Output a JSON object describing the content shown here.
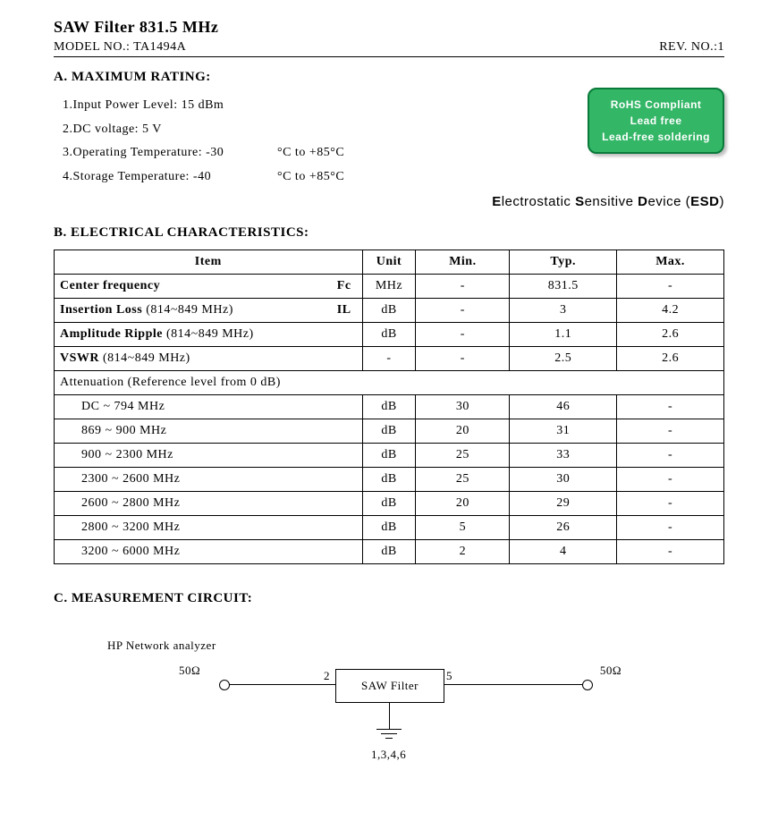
{
  "header": {
    "title": "SAW Filter 831.5 MHz",
    "model": "MODEL NO.: TA1494A",
    "rev": "REV. NO.:1"
  },
  "sectionA": {
    "title": "A. MAXIMUM RATING:",
    "items": [
      {
        "label": "1.Input Power Level: 15 dBm",
        "extra": ""
      },
      {
        "label": "2.DC voltage: 5 V",
        "extra": ""
      },
      {
        "label": "3.Operating Temperature: -30",
        "extra": "°C to +85°C"
      },
      {
        "label": "4.Storage Temperature: -40",
        "extra": "°C to +85°C"
      }
    ]
  },
  "badge": {
    "line1": "RoHS Compliant",
    "line2": "Lead free",
    "line3": "Lead-free soldering",
    "bg": "#33b666",
    "border": "#0a7a3a"
  },
  "esd": "Electrostatic Sensitive Device (ESD)",
  "sectionB": {
    "title": "B. ELECTRICAL CHARACTERISTICS:",
    "headers": {
      "item": "Item",
      "unit": "Unit",
      "min": "Min.",
      "typ": "Typ.",
      "max": "Max."
    },
    "rows": [
      {
        "item": "Center frequency",
        "sym": "Fc",
        "unit": "MHz",
        "min": "-",
        "typ": "831.5",
        "max": "-"
      },
      {
        "item": "Insertion Loss     (814~849 MHz)",
        "sym": "IL",
        "unit": "dB",
        "min": "-",
        "typ": "3",
        "max": "4.2"
      },
      {
        "item": "Amplitude Ripple     (814~849 MHz)",
        "sym": "",
        "unit": "dB",
        "min": "-",
        "typ": "1.1",
        "max": "2.6"
      },
      {
        "item": "VSWR   (814~849 MHz)",
        "sym": "",
        "unit": "-",
        "min": "-",
        "typ": "2.5",
        "max": "2.6"
      }
    ],
    "attenuation_header": "Attenuation (Reference level from 0 dB)",
    "attenuation_rows": [
      {
        "item": "DC ~ 794     MHz",
        "unit": "dB",
        "min": "30",
        "typ": "46",
        "max": "-"
      },
      {
        "item": "869  ~ 900     MHz",
        "unit": "dB",
        "min": "20",
        "typ": "31",
        "max": "-"
      },
      {
        "item": "900  ~ 2300     MHz",
        "unit": "dB",
        "min": "25",
        "typ": "33",
        "max": "-"
      },
      {
        "item": "2300 ~ 2600     MHz",
        "unit": "dB",
        "min": "25",
        "typ": "30",
        "max": "-"
      },
      {
        "item": "2600 ~ 2800     MHz",
        "unit": "dB",
        "min": "20",
        "typ": "29",
        "max": "-"
      },
      {
        "item": "2800 ~ 3200     MHz",
        "unit": "dB",
        "min": "5",
        "typ": "26",
        "max": "-"
      },
      {
        "item": "3200 ~ 6000     MHz",
        "unit": "dB",
        "min": "2",
        "typ": "4",
        "max": "-"
      }
    ]
  },
  "sectionC": {
    "title": "C. MEASUREMENT CIRCUIT:",
    "analyzer": "HP Network analyzer",
    "left_imp": "50Ω",
    "right_imp": "50Ω",
    "pin_left": "2",
    "pin_right": "5",
    "box_label": "SAW Filter",
    "gnd_pins": "1,3,4,6"
  }
}
